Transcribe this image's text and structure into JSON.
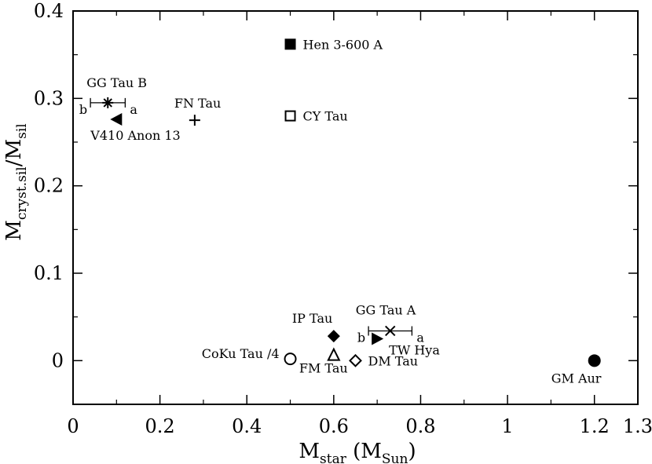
{
  "chart_data": {
    "type": "scatter",
    "title": "",
    "xlabel": {
      "main": "M",
      "sub": "star",
      "mid": " (M",
      "sub2": "Sun",
      "end": ")"
    },
    "ylabel": {
      "main": "M",
      "sub": "cryst.sil",
      "mid": "/M",
      "sub2": "sil"
    },
    "xlim": [
      0,
      1.3
    ],
    "ylim": [
      -0.05,
      0.4
    ],
    "xticks": [
      {
        "value": 0,
        "label": "0"
      },
      {
        "value": 0.2,
        "label": "0.2"
      },
      {
        "value": 0.4,
        "label": "0.4"
      },
      {
        "value": 0.6,
        "label": "0.6"
      },
      {
        "value": 0.8,
        "label": "0.8"
      },
      {
        "value": 1.0,
        "label": "1"
      },
      {
        "value": 1.2,
        "label": "1.2"
      },
      {
        "value": 1.3,
        "label": "1.3"
      }
    ],
    "yticks": [
      {
        "value": 0,
        "label": "0"
      },
      {
        "value": 0.1,
        "label": "0.1"
      },
      {
        "value": 0.2,
        "label": "0.2"
      },
      {
        "value": 0.3,
        "label": "0.3"
      },
      {
        "value": 0.4,
        "label": "0.4"
      }
    ],
    "grid": false,
    "points": [
      {
        "name": "Hen 3-600 A",
        "x": 0.5,
        "y": 0.362,
        "marker": "square-filled",
        "label_pos": "right"
      },
      {
        "name": "CY Tau",
        "x": 0.5,
        "y": 0.28,
        "marker": "square-open",
        "label_pos": "right"
      },
      {
        "name": "FN Tau",
        "x": 0.28,
        "y": 0.275,
        "marker": "plus",
        "label_pos": "top"
      },
      {
        "name": "V410 Anon 13",
        "x": 0.1,
        "y": 0.276,
        "marker": "triangle-left-filled",
        "label_pos": "below-left"
      },
      {
        "name": "GG Tau B",
        "x": 0.08,
        "y": 0.295,
        "marker": "star",
        "label_pos": "top",
        "xerr": [
          0.04,
          0.12
        ],
        "err_labels": [
          "b",
          "a"
        ]
      },
      {
        "name": "IP Tau",
        "x": 0.6,
        "y": 0.028,
        "marker": "diamond-filled",
        "label_pos": "top-left"
      },
      {
        "name": "GG Tau A",
        "x": 0.73,
        "y": 0.034,
        "marker": "cross",
        "label_pos": "top",
        "xerr": [
          0.68,
          0.78
        ],
        "err_labels": [
          "b",
          "a"
        ]
      },
      {
        "name": "TW Hya",
        "x": 0.7,
        "y": 0.025,
        "marker": "triangle-right-filled",
        "label_pos": "below-right"
      },
      {
        "name": "CoKu Tau /4",
        "x": 0.5,
        "y": 0.002,
        "marker": "circle-open",
        "label_pos": "left"
      },
      {
        "name": "FM Tau",
        "x": 0.6,
        "y": 0.006,
        "marker": "triangle-up-open",
        "label_pos": "below"
      },
      {
        "name": "DM Tau",
        "x": 0.65,
        "y": 0.0,
        "marker": "diamond-open",
        "label_pos": "right"
      },
      {
        "name": "GM Aur",
        "x": 1.2,
        "y": 0.0,
        "marker": "circle-filled",
        "label_pos": "below"
      }
    ]
  }
}
